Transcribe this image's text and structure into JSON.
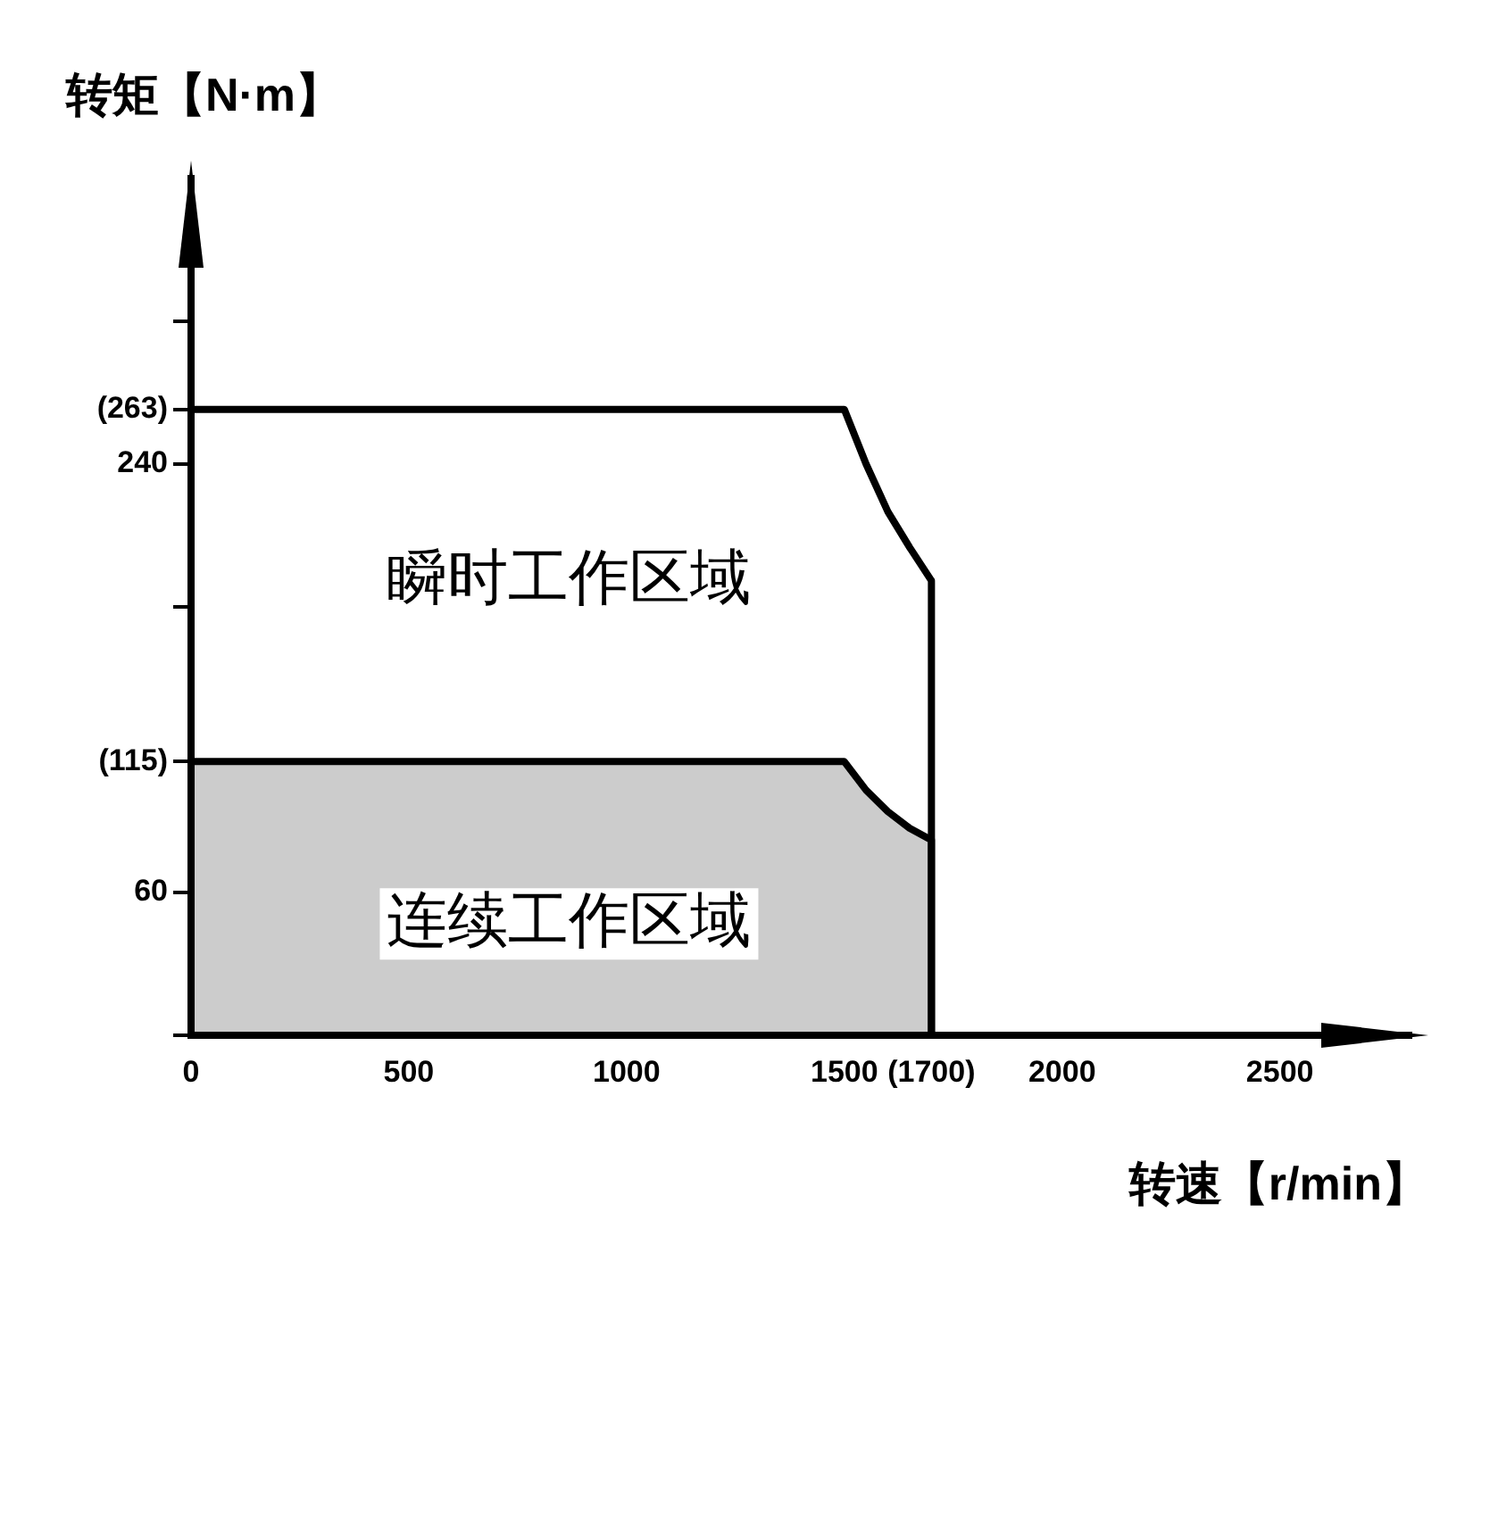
{
  "chart_data": {
    "type": "line",
    "xlabel": "转速【r/min】",
    "ylabel": "转矩【N·m】",
    "xlim": [
      0,
      2800
    ],
    "ylim": [
      0,
      360
    ],
    "xticks": [
      0,
      500,
      1000,
      1500,
      {
        "value": 1700,
        "label": "(1700)"
      },
      2000,
      2500
    ],
    "yticks": [
      {
        "value": 0,
        "label": null
      },
      60,
      {
        "value": 115,
        "label": "(115)"
      },
      {
        "value": 180,
        "label": null
      },
      240,
      {
        "value": 263,
        "label": "(263)"
      },
      {
        "value": 300,
        "label": null
      }
    ],
    "series": [
      {
        "type": "line",
        "color": "#000000",
        "x": [
          0,
          1500,
          1550,
          1600,
          1650,
          1700,
          1700
        ],
        "values": [
          263,
          263,
          240,
          220,
          205,
          191,
          0
        ]
      },
      {
        "type": "area",
        "color": "#000000",
        "x": [
          0,
          1500,
          1550,
          1600,
          1650,
          1700,
          1700
        ],
        "values": [
          115,
          115,
          103,
          94,
          87,
          82,
          0
        ]
      }
    ],
    "annotations": [
      "瞬时工作区域",
      "连续工作区域"
    ],
    "grid": false,
    "legend": false,
    "marker": "none",
    "line_style": "solid"
  }
}
